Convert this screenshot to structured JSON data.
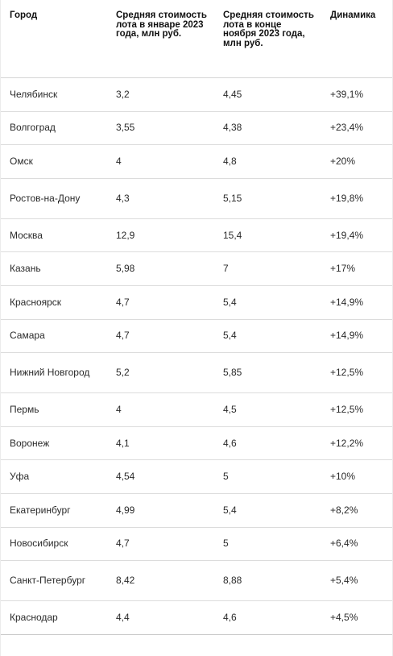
{
  "table": {
    "headers": [
      "Город",
      "Средняя стоимость лота в январе 2023 года, млн руб.",
      "Средняя стоимость лота в конце ноября 2023 года, млн руб.",
      "Динамика"
    ],
    "rows": [
      {
        "city": "Челябинск",
        "jan": "3,2",
        "nov": "4,45",
        "change": "+39,1%"
      },
      {
        "city": "Волгоград",
        "jan": "3,55",
        "nov": "4,38",
        "change": "+23,4%"
      },
      {
        "city": "Омск",
        "jan": "4",
        "nov": "4,8",
        "change": "+20%"
      },
      {
        "city": "Ростов-на-Дону",
        "jan": "4,3",
        "nov": "5,15",
        "change": "+19,8%"
      },
      {
        "city": "Москва",
        "jan": "12,9",
        "nov": "15,4",
        "change": "+19,4%"
      },
      {
        "city": "Казань",
        "jan": "5,98",
        "nov": "7",
        "change": "+17%"
      },
      {
        "city": "Красноярск",
        "jan": "4,7",
        "nov": "5,4",
        "change": "+14,9%"
      },
      {
        "city": "Самара",
        "jan": "4,7",
        "nov": "5,4",
        "change": "+14,9%"
      },
      {
        "city": "Нижний Новгород",
        "jan": "5,2",
        "nov": "5,85",
        "change": "+12,5%"
      },
      {
        "city": "Пермь",
        "jan": "4",
        "nov": "4,5",
        "change": "+12,5%"
      },
      {
        "city": "Воронеж",
        "jan": "4,1",
        "nov": "4,6",
        "change": "+12,2%"
      },
      {
        "city": "Уфа",
        "jan": "4,54",
        "nov": "5",
        "change": "+10%"
      },
      {
        "city": "Екатеринбург",
        "jan": "4,99",
        "nov": "5,4",
        "change": "+8,2%"
      },
      {
        "city": "Новосибирск",
        "jan": "4,7",
        "nov": "5",
        "change": "+6,4%"
      },
      {
        "city": "Санкт-Петербург",
        "jan": "8,42",
        "nov": "8,88",
        "change": "+5,4%"
      },
      {
        "city": "Краснодар",
        "jan": "4,4",
        "nov": "4,6",
        "change": "+4,5%"
      }
    ]
  }
}
